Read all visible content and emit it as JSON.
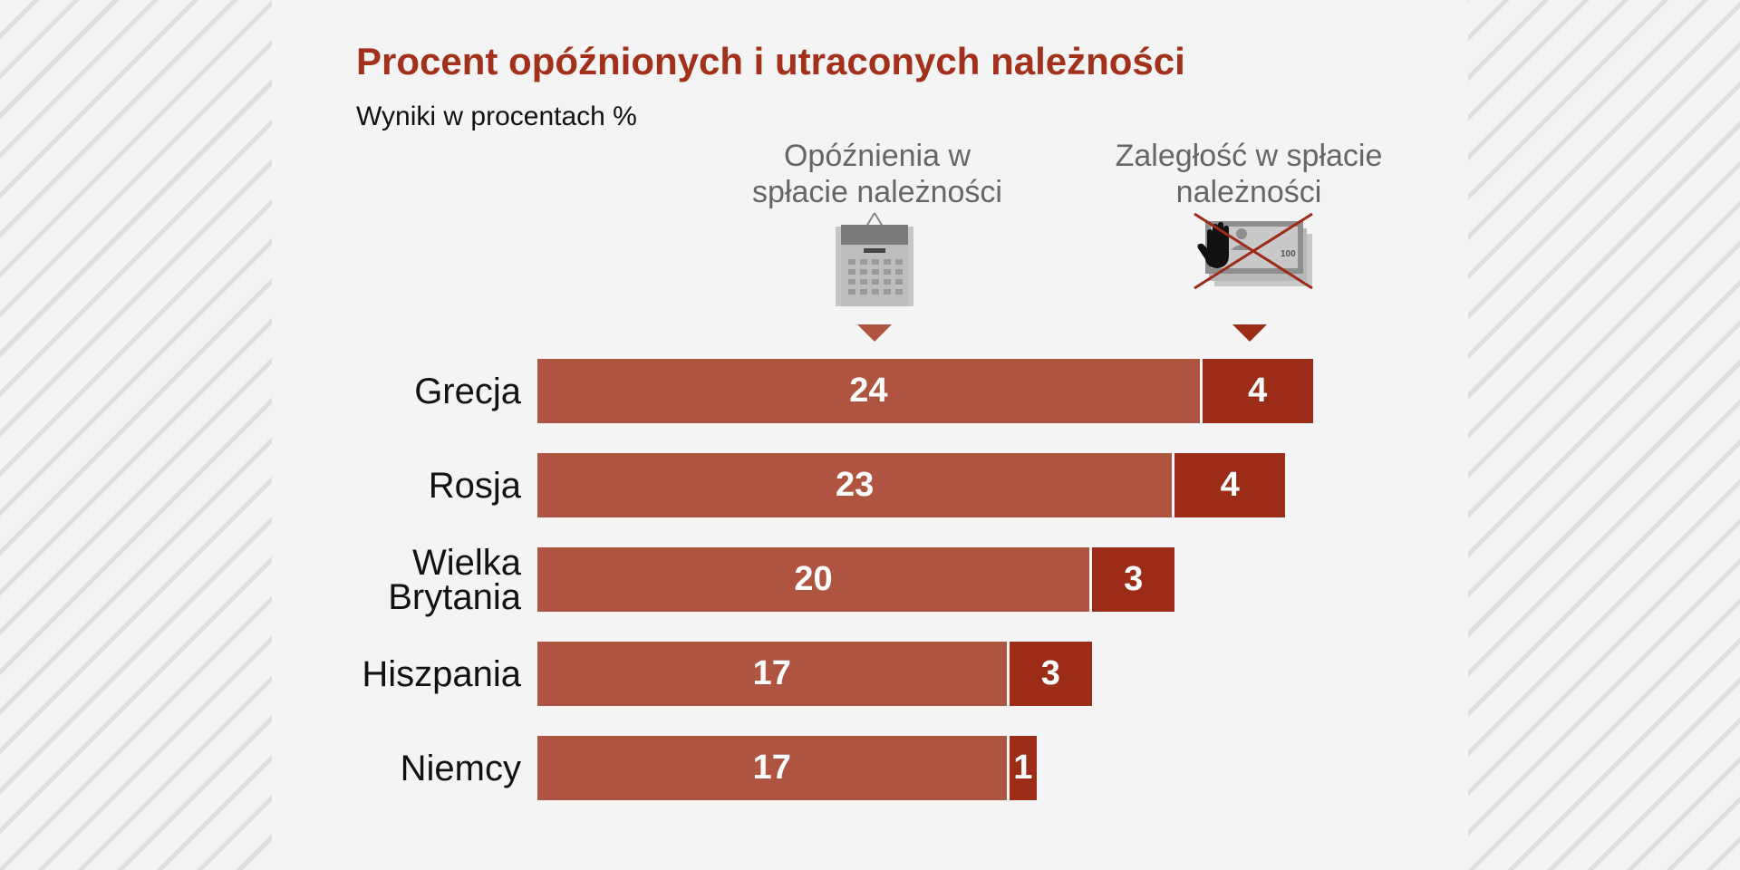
{
  "chart_data": {
    "type": "bar",
    "orientation": "horizontal",
    "stacked": true,
    "title": "Procent opóźnionych i utraconych należności",
    "subtitle": "Wyniki w procentach %",
    "categories": [
      "Grecja",
      "Rosja",
      "Wielka Brytania",
      "Hiszpania",
      "Niemcy"
    ],
    "category_lines": [
      [
        "Grecja"
      ],
      [
        "Rosja"
      ],
      [
        "Wielka",
        "Brytania"
      ],
      [
        "Hiszpania"
      ],
      [
        "Niemcy"
      ]
    ],
    "series": [
      {
        "name": "Opóźnienia w spłacie należności",
        "name_lines": [
          "Opóźnienia w",
          "spłacie należności"
        ],
        "values": [
          24,
          23,
          20,
          17,
          17
        ],
        "color": "#b05442",
        "icon": "calendar-icon"
      },
      {
        "name": "Zaległość w spłacie należności",
        "name_lines": [
          "Zaległość w spłacie",
          "należności"
        ],
        "values": [
          4,
          4,
          3,
          3,
          1
        ],
        "color": "#9c2b17",
        "icon": "blocked-payment-icon"
      }
    ],
    "icon_text": {
      "banknote_value": "100"
    },
    "xlim": [
      0,
      28
    ],
    "grid": false,
    "legend": "top"
  },
  "colors": {
    "title": "#a3301b",
    "background": "#f4f4f4",
    "stripe": "#dedede"
  }
}
